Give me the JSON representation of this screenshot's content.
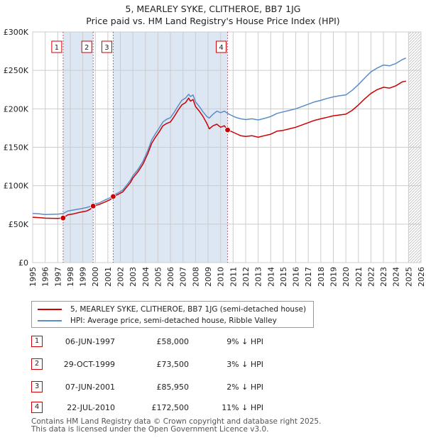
{
  "chart_data": {
    "type": "line",
    "title": "5, MEARLEY SYKE, CLITHEROE, BB7 1JG",
    "subtitle": "Price paid vs. HM Land Registry's House Price Index (HPI)",
    "xlim": [
      1995,
      2026
    ],
    "ylim": [
      0,
      300000
    ],
    "y_ticks": [
      {
        "value": 0,
        "label": "£0"
      },
      {
        "value": 50000,
        "label": "£50K"
      },
      {
        "value": 100000,
        "label": "£100K"
      },
      {
        "value": 150000,
        "label": "£150K"
      },
      {
        "value": 200000,
        "label": "£200K"
      },
      {
        "value": 250000,
        "label": "£250K"
      },
      {
        "value": 300000,
        "label": "£300K"
      }
    ],
    "x_ticks": [
      "1995",
      "1996",
      "1997",
      "1998",
      "1999",
      "2000",
      "2001",
      "2002",
      "2003",
      "2004",
      "2005",
      "2006",
      "2007",
      "2008",
      "2009",
      "2010",
      "2011",
      "2012",
      "2013",
      "2014",
      "2015",
      "2016",
      "2017",
      "2018",
      "2019",
      "2020",
      "2021",
      "2022",
      "2023",
      "2024",
      "2025",
      "2026"
    ],
    "grid": true,
    "forecast_start": 2025.0,
    "colors": {
      "property": "#cc0000",
      "hpi": "#5b8cc8",
      "shade": "#dde6f3"
    },
    "series": [
      {
        "name": "5, MEARLEY SYKE, CLITHEROE, BB7 1JG (semi-detached house)",
        "color": "#cc0000",
        "points": [
          [
            1995.0,
            59000
          ],
          [
            1995.5,
            58500
          ],
          [
            1996.0,
            57800
          ],
          [
            1996.5,
            57600
          ],
          [
            1997.0,
            57500
          ],
          [
            1997.43,
            58000
          ],
          [
            1997.8,
            62000
          ],
          [
            1998.3,
            63500
          ],
          [
            1998.8,
            65500
          ],
          [
            1999.3,
            67000
          ],
          [
            1999.6,
            69500
          ],
          [
            1999.83,
            73500
          ],
          [
            2000.3,
            75500
          ],
          [
            2000.8,
            79000
          ],
          [
            2001.2,
            82000
          ],
          [
            2001.43,
            85950
          ],
          [
            2001.8,
            88500
          ],
          [
            2002.2,
            92000
          ],
          [
            2002.5,
            98000
          ],
          [
            2002.8,
            104000
          ],
          [
            2003.0,
            110000
          ],
          [
            2003.4,
            118000
          ],
          [
            2003.8,
            128000
          ],
          [
            2004.2,
            142000
          ],
          [
            2004.5,
            155000
          ],
          [
            2004.8,
            163000
          ],
          [
            2005.1,
            170000
          ],
          [
            2005.4,
            178000
          ],
          [
            2005.7,
            181000
          ],
          [
            2006.0,
            183000
          ],
          [
            2006.3,
            190000
          ],
          [
            2006.6,
            198000
          ],
          [
            2006.9,
            205000
          ],
          [
            2007.2,
            208000
          ],
          [
            2007.45,
            214000
          ],
          [
            2007.6,
            210000
          ],
          [
            2007.8,
            212000
          ],
          [
            2008.0,
            203000
          ],
          [
            2008.3,
            197000
          ],
          [
            2008.6,
            190000
          ],
          [
            2008.9,
            181000
          ],
          [
            2009.1,
            174000
          ],
          [
            2009.4,
            178000
          ],
          [
            2009.7,
            180000
          ],
          [
            2010.0,
            176000
          ],
          [
            2010.3,
            178000
          ],
          [
            2010.56,
            172500
          ],
          [
            2010.8,
            171000
          ],
          [
            2011.2,
            168000
          ],
          [
            2011.6,
            165000
          ],
          [
            2012.0,
            164000
          ],
          [
            2012.5,
            165000
          ],
          [
            2013.0,
            163000
          ],
          [
            2013.5,
            165000
          ],
          [
            2014.0,
            167000
          ],
          [
            2014.5,
            171000
          ],
          [
            2015.0,
            172000
          ],
          [
            2015.5,
            174000
          ],
          [
            2016.0,
            176000
          ],
          [
            2016.5,
            179000
          ],
          [
            2017.0,
            182000
          ],
          [
            2017.5,
            185000
          ],
          [
            2018.0,
            187000
          ],
          [
            2018.5,
            189000
          ],
          [
            2019.0,
            191000
          ],
          [
            2019.5,
            192000
          ],
          [
            2020.0,
            193000
          ],
          [
            2020.5,
            198000
          ],
          [
            2021.0,
            205000
          ],
          [
            2021.5,
            213000
          ],
          [
            2022.0,
            220000
          ],
          [
            2022.5,
            225000
          ],
          [
            2023.0,
            228000
          ],
          [
            2023.5,
            227000
          ],
          [
            2024.0,
            230000
          ],
          [
            2024.5,
            235000
          ],
          [
            2024.8,
            236000
          ]
        ]
      },
      {
        "name": "HPI: Average price, semi-detached house, Ribble Valley",
        "color": "#5b8cc8",
        "points": [
          [
            1995.0,
            64000
          ],
          [
            1995.5,
            63500
          ],
          [
            1996.0,
            62500
          ],
          [
            1996.5,
            62800
          ],
          [
            1997.0,
            63000
          ],
          [
            1997.43,
            63800
          ],
          [
            1997.8,
            67000
          ],
          [
            1998.3,
            68500
          ],
          [
            1998.8,
            70000
          ],
          [
            1999.3,
            71500
          ],
          [
            1999.6,
            73000
          ],
          [
            1999.83,
            75800
          ],
          [
            2000.3,
            77500
          ],
          [
            2000.8,
            81500
          ],
          [
            2001.2,
            84500
          ],
          [
            2001.43,
            87700
          ],
          [
            2001.8,
            90500
          ],
          [
            2002.2,
            94500
          ],
          [
            2002.5,
            100500
          ],
          [
            2002.8,
            107000
          ],
          [
            2003.0,
            113000
          ],
          [
            2003.4,
            121000
          ],
          [
            2003.8,
            131500
          ],
          [
            2004.2,
            146000
          ],
          [
            2004.5,
            159500
          ],
          [
            2004.8,
            167500
          ],
          [
            2005.1,
            175000
          ],
          [
            2005.4,
            183000
          ],
          [
            2005.7,
            186500
          ],
          [
            2006.0,
            188500
          ],
          [
            2006.3,
            195500
          ],
          [
            2006.6,
            203500
          ],
          [
            2006.9,
            211000
          ],
          [
            2007.2,
            214000
          ],
          [
            2007.45,
            219000
          ],
          [
            2007.6,
            216000
          ],
          [
            2007.8,
            218000
          ],
          [
            2008.0,
            209000
          ],
          [
            2008.3,
            203000
          ],
          [
            2008.6,
            196000
          ],
          [
            2008.9,
            190000
          ],
          [
            2009.1,
            188000
          ],
          [
            2009.4,
            193000
          ],
          [
            2009.7,
            197000
          ],
          [
            2010.0,
            195000
          ],
          [
            2010.3,
            197000
          ],
          [
            2010.56,
            194000
          ],
          [
            2010.8,
            192000
          ],
          [
            2011.2,
            189000
          ],
          [
            2011.6,
            187000
          ],
          [
            2012.0,
            186000
          ],
          [
            2012.5,
            187000
          ],
          [
            2013.0,
            185500
          ],
          [
            2013.5,
            187500
          ],
          [
            2014.0,
            190000
          ],
          [
            2014.5,
            194000
          ],
          [
            2015.0,
            196000
          ],
          [
            2015.5,
            198000
          ],
          [
            2016.0,
            200000
          ],
          [
            2016.5,
            203000
          ],
          [
            2017.0,
            206000
          ],
          [
            2017.5,
            209000
          ],
          [
            2018.0,
            211000
          ],
          [
            2018.5,
            213500
          ],
          [
            2019.0,
            215500
          ],
          [
            2019.5,
            217000
          ],
          [
            2020.0,
            218000
          ],
          [
            2020.5,
            224000
          ],
          [
            2021.0,
            231500
          ],
          [
            2021.5,
            240000
          ],
          [
            2022.0,
            248000
          ],
          [
            2022.5,
            253000
          ],
          [
            2023.0,
            257000
          ],
          [
            2023.5,
            256000
          ],
          [
            2024.0,
            259000
          ],
          [
            2024.5,
            264000
          ],
          [
            2024.8,
            266000
          ]
        ]
      }
    ],
    "sales": [
      {
        "num": "1",
        "x": 1997.43,
        "price": 58000
      },
      {
        "num": "2",
        "x": 1999.83,
        "price": 73500
      },
      {
        "num": "3",
        "x": 2001.43,
        "price": 85950
      },
      {
        "num": "4",
        "x": 2010.56,
        "price": 172500
      }
    ]
  },
  "legend": {
    "property_label": "5, MEARLEY SYKE, CLITHEROE, BB7 1JG (semi-detached house)",
    "hpi_label": "HPI: Average price, semi-detached house, Ribble Valley"
  },
  "sales_table": [
    {
      "num": "1",
      "date": "06-JUN-1997",
      "price": "£58,000",
      "rel": "9% ↓ HPI"
    },
    {
      "num": "2",
      "date": "29-OCT-1999",
      "price": "£73,500",
      "rel": "3% ↓ HPI"
    },
    {
      "num": "3",
      "date": "07-JUN-2001",
      "price": "£85,950",
      "rel": "2% ↓ HPI"
    },
    {
      "num": "4",
      "date": "22-JUL-2010",
      "price": "£172,500",
      "rel": "11% ↓ HPI"
    }
  ],
  "footer": {
    "line1": "Contains HM Land Registry data © Crown copyright and database right 2025.",
    "line2": "This data is licensed under the Open Government Licence v3.0."
  }
}
